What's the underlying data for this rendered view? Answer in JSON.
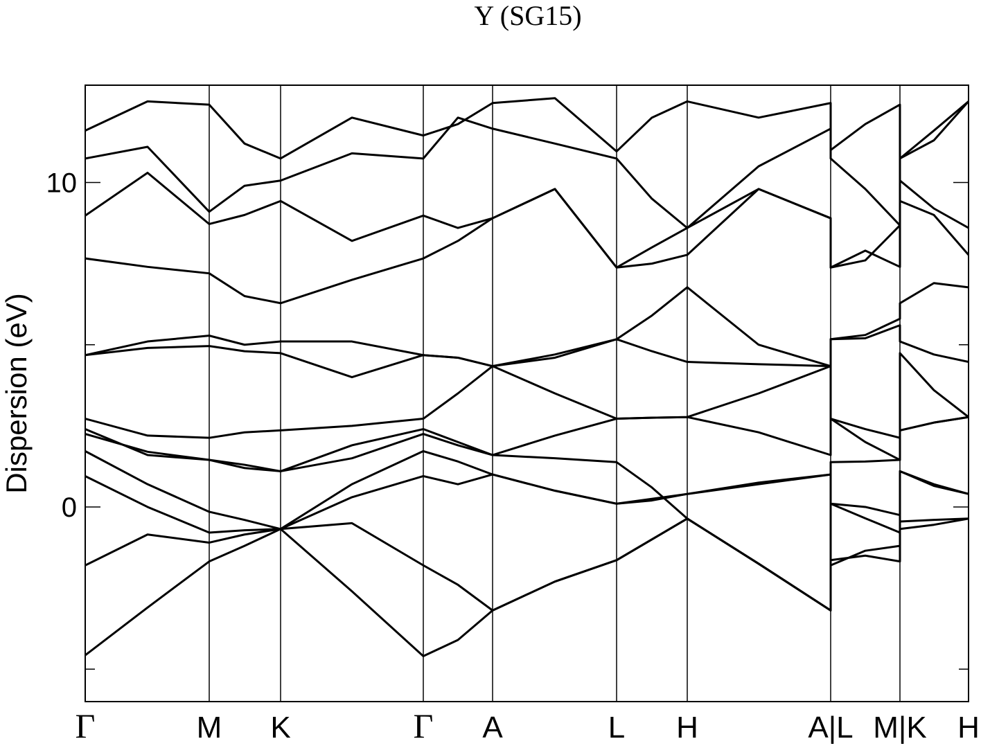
{
  "chart_data": {
    "type": "line",
    "title": "Y (SG15)",
    "y_label": "Dispersion (eV)",
    "line_color": "#000000",
    "xlim": [
      0,
      1.275
    ],
    "ylim": [
      -6,
      13
    ],
    "yticks": [
      0,
      10
    ],
    "minor_yticks": [
      -5,
      5
    ],
    "xticks": [
      {
        "value": 0,
        "label": "Γ"
      },
      {
        "value": 0.179,
        "label": "M"
      },
      {
        "value": 0.282,
        "label": "K"
      },
      {
        "value": 0.488,
        "label": "Γ"
      },
      {
        "value": 0.588,
        "label": "A"
      },
      {
        "value": 0.767,
        "label": "L"
      },
      {
        "value": 0.869,
        "label": "H"
      },
      {
        "value": 1.076,
        "label": "A|L"
      },
      {
        "value": 1.176,
        "label": "M|K"
      },
      {
        "value": 1.275,
        "label": "H"
      }
    ],
    "x": [
      0,
      0.09,
      0.179,
      0.23,
      0.282,
      0.385,
      0.488,
      0.538,
      0.588,
      0.678,
      0.767,
      0.818,
      0.869,
      0.972,
      1.076,
      1.076,
      1.126,
      1.176,
      1.176,
      1.225,
      1.275
    ],
    "series": [
      {
        "values": [
          -4.57,
          -3.1,
          -1.68,
          -1.2,
          -0.68,
          -2.6,
          -4.6,
          -4.1,
          -3.19,
          -2.3,
          -1.64,
          -1.0,
          -0.36,
          -1.75,
          -3.19,
          -1.64,
          -1.5,
          -1.68,
          -0.68,
          -0.55,
          -0.36
        ]
      },
      {
        "values": [
          -1.8,
          -0.85,
          -1.1,
          -0.85,
          -0.68,
          -0.5,
          -1.8,
          -2.4,
          -3.19,
          -2.3,
          -1.64,
          -1.0,
          -0.36,
          -1.75,
          -3.19,
          -1.8,
          -1.35,
          -1.2,
          -0.45,
          -0.4,
          -0.36
        ]
      },
      {
        "values": [
          0.95,
          0.0,
          -0.79,
          -0.72,
          -0.68,
          0.3,
          0.95,
          0.7,
          1.0,
          0.5,
          0.1,
          0.2,
          0.4,
          0.7,
          1.0,
          0.1,
          -0.35,
          -0.79,
          1.1,
          0.7,
          0.4
        ]
      },
      {
        "values": [
          1.72,
          0.7,
          -0.15,
          -0.4,
          -0.68,
          0.7,
          1.72,
          1.4,
          1.0,
          0.5,
          0.1,
          0.25,
          0.4,
          0.75,
          1.0,
          0.1,
          0.0,
          -0.25,
          1.1,
          0.65,
          0.4
        ]
      },
      {
        "values": [
          2.25,
          1.7,
          1.45,
          1.2,
          1.1,
          1.5,
          2.25,
          1.9,
          1.6,
          1.5,
          1.38,
          0.6,
          -0.36,
          -1.75,
          -3.19,
          1.38,
          1.4,
          1.45,
          2.36,
          2.6,
          2.77
        ]
      },
      {
        "values": [
          2.4,
          1.6,
          1.45,
          1.3,
          1.1,
          1.9,
          2.4,
          2.0,
          1.6,
          2.2,
          2.72,
          2.75,
          2.77,
          2.3,
          1.6,
          2.72,
          2.0,
          1.45,
          2.36,
          2.6,
          2.77
        ]
      },
      {
        "values": [
          2.72,
          2.2,
          2.13,
          2.3,
          2.36,
          2.5,
          2.72,
          3.5,
          4.34,
          3.5,
          2.72,
          2.75,
          2.77,
          3.5,
          4.34,
          2.72,
          2.4,
          2.13,
          4.74,
          3.6,
          2.77
        ]
      },
      {
        "values": [
          4.68,
          4.9,
          4.96,
          4.8,
          4.74,
          4.0,
          4.68,
          4.6,
          4.34,
          4.6,
          5.17,
          4.8,
          4.47,
          4.4,
          4.34,
          5.17,
          5.2,
          5.6,
          5.1,
          4.7,
          4.47
        ]
      },
      {
        "values": [
          4.68,
          5.1,
          5.28,
          5.0,
          5.1,
          5.1,
          4.68,
          4.6,
          4.34,
          4.7,
          5.17,
          5.9,
          6.77,
          5.0,
          4.34,
          5.17,
          5.3,
          5.8,
          6.28,
          6.9,
          6.77
        ]
      },
      {
        "values": [
          7.66,
          7.4,
          7.2,
          6.5,
          6.28,
          7.0,
          7.66,
          8.2,
          8.9,
          9.8,
          7.38,
          7.5,
          7.77,
          9.8,
          8.9,
          7.38,
          7.9,
          7.4,
          9.43,
          9.0,
          7.77
        ]
      },
      {
        "values": [
          8.98,
          10.3,
          8.72,
          9.0,
          9.43,
          8.2,
          8.98,
          8.6,
          8.9,
          9.8,
          7.38,
          8.0,
          8.6,
          9.8,
          8.9,
          7.38,
          7.6,
          8.68,
          10.06,
          9.2,
          8.6
        ]
      },
      {
        "values": [
          10.74,
          11.1,
          9.1,
          9.9,
          10.06,
          10.9,
          10.74,
          12.0,
          11.66,
          11.2,
          10.74,
          9.5,
          8.6,
          10.5,
          11.66,
          10.74,
          9.8,
          8.68,
          10.74,
          11.3,
          12.5
        ]
      },
      {
        "values": [
          11.6,
          12.5,
          12.4,
          11.2,
          10.74,
          12.0,
          11.45,
          11.8,
          12.45,
          12.6,
          10.96,
          12.0,
          12.5,
          12.0,
          12.45,
          11.0,
          11.8,
          12.4,
          10.74,
          11.6,
          12.5
        ]
      }
    ]
  }
}
